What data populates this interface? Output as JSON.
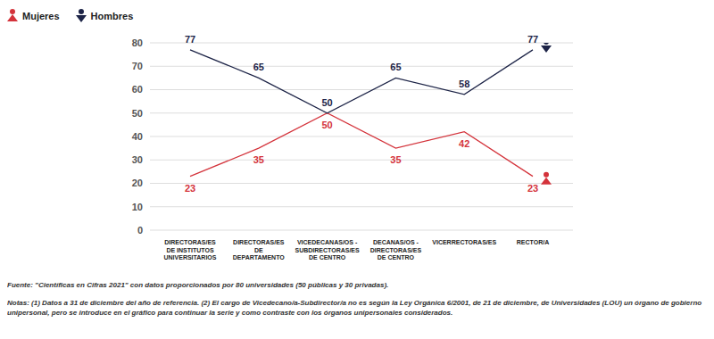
{
  "chart_data": {
    "type": "line",
    "categories": [
      "DIRECTORAS/ES\nDE INSTITUTOS\nUNIVERSITARIOS",
      "DIRECTORAS/ES\nDE\nDEPARTAMENTO",
      "VICEDECANAS/OS -\nSUBDIRECTORAS/ES\nDE CENTRO",
      "DECANAS/OS -\nDIRECTORAS/ES\nDE CENTRO",
      "VICERRECTORAS/ES",
      "RECTOR/A"
    ],
    "series": [
      {
        "name": "Mujeres",
        "color": "#d4333b",
        "values": [
          23,
          35,
          50,
          35,
          42,
          23
        ]
      },
      {
        "name": "Hombres",
        "color": "#1d2447",
        "values": [
          77,
          65,
          50,
          65,
          58,
          77
        ]
      }
    ],
    "ylim": [
      0,
      80
    ],
    "yticks": [
      0,
      10,
      20,
      30,
      40,
      50,
      60,
      70,
      80
    ],
    "grid": true,
    "legend": "upper left",
    "data_labels": true,
    "source": "Fuente: \"Científicas en Cifras 2021\" con datos proporcionados por 80 universidades (50 públicas y 30 privadas).",
    "notes": "Notas: (1) Datos a 31 de diciembre del año de referencia. (2) El cargo de Vicedecano/a-Subdirector/a no es según la Ley Orgánica 6/2001, de 21 de diciembre, de Universidades (LOU) un órgano de gobierno unipersonal, pero se introduce en el gráfico para continuar la serie y como contraste con los órganos unipersonales considerados."
  }
}
